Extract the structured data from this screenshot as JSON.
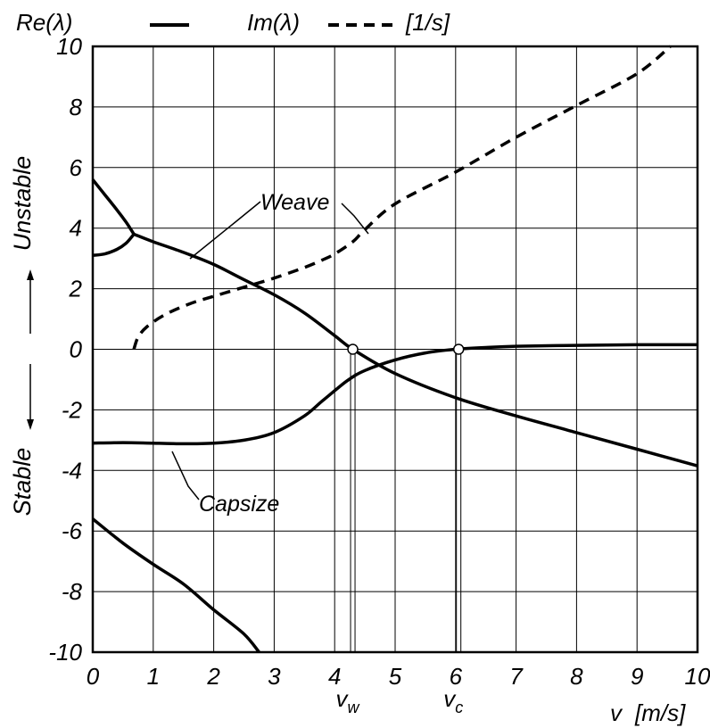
{
  "chart_data": {
    "type": "line",
    "xlabel": "v",
    "xunit": "[m/s]",
    "unit": "[1/s]",
    "xlim": [
      0,
      10
    ],
    "ylim": [
      -10,
      10
    ],
    "xticks": [
      "0",
      "1",
      "2",
      "3",
      "4",
      "5",
      "6",
      "7",
      "8",
      "9",
      "10"
    ],
    "yticks": [
      "10",
      "8",
      "6",
      "4",
      "2",
      "0",
      "-2",
      "-4",
      "-6",
      "-8",
      "-10"
    ],
    "grid": true,
    "legend": [
      {
        "label": "Re(λ)",
        "style": "solid"
      },
      {
        "label": "Im(λ)",
        "style": "dashed"
      }
    ],
    "ylabel_top": "Unstable",
    "ylabel_bottom": "Stable",
    "annotations": [
      {
        "text": "Weave"
      },
      {
        "text": "Capsize"
      }
    ],
    "markers": [
      {
        "symbol": "v",
        "subscript": "w",
        "x": 4.3,
        "y": 0
      },
      {
        "symbol": "v",
        "subscript": "c",
        "x": 6.05,
        "y": 0
      }
    ],
    "series": [
      {
        "id": "re_weave_upper",
        "style": "solid",
        "x": [
          0,
          0.2,
          0.4,
          0.55,
          0.68
        ],
        "y": [
          5.6,
          5.1,
          4.6,
          4.2,
          3.8
        ]
      },
      {
        "id": "re_weave_lower",
        "style": "solid",
        "x": [
          0,
          0.2,
          0.4,
          0.55,
          0.68
        ],
        "y": [
          3.1,
          3.15,
          3.3,
          3.5,
          3.8
        ]
      },
      {
        "id": "re_weave",
        "style": "solid",
        "x": [
          0.68,
          1,
          1.5,
          2,
          2.5,
          3,
          3.5,
          4,
          4.3,
          5,
          6,
          7,
          8,
          9,
          10
        ],
        "y": [
          3.8,
          3.55,
          3.2,
          2.8,
          2.3,
          1.8,
          1.2,
          0.45,
          0,
          -0.8,
          -1.6,
          -2.2,
          -2.75,
          -3.3,
          -3.85
        ]
      },
      {
        "id": "re_capsize",
        "style": "solid",
        "x": [
          0,
          0.5,
          1,
          1.5,
          2,
          2.5,
          3,
          3.5,
          3.8,
          4.2,
          4.5,
          5,
          5.5,
          6,
          6.5,
          7,
          8,
          9,
          10
        ],
        "y": [
          -3.1,
          -3.08,
          -3.1,
          -3.12,
          -3.1,
          -3.0,
          -2.75,
          -2.2,
          -1.7,
          -1.05,
          -0.7,
          -0.35,
          -0.12,
          0,
          0.06,
          0.1,
          0.13,
          0.15,
          0.15
        ]
      },
      {
        "id": "re_castor",
        "style": "solid",
        "x": [
          0,
          0.5,
          1,
          1.5,
          2,
          2.5,
          2.75
        ],
        "y": [
          -5.6,
          -6.4,
          -7.1,
          -7.75,
          -8.6,
          -9.4,
          -10
        ]
      },
      {
        "id": "im_weave",
        "style": "dashed",
        "x": [
          0.68,
          0.75,
          0.9,
          1.2,
          1.6,
          2,
          2.5,
          3,
          3.5,
          3.8,
          4,
          4.3,
          4.5,
          5,
          6,
          7,
          8,
          9,
          9.55
        ],
        "y": [
          0,
          0.4,
          0.75,
          1.15,
          1.5,
          1.75,
          2.05,
          2.35,
          2.7,
          2.95,
          3.15,
          3.55,
          3.95,
          4.8,
          5.85,
          7.0,
          8.05,
          9.1,
          10
        ]
      }
    ]
  }
}
